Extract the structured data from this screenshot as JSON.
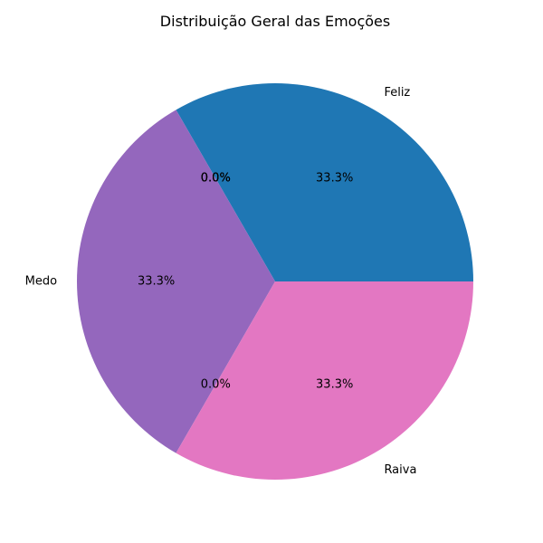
{
  "chart_data": {
    "type": "pie",
    "title": "Distribuição Geral das Emoções",
    "slices": [
      {
        "label": "Feliz",
        "value": 1,
        "pct_label": "33.3%",
        "color": "#1f77b4"
      },
      {
        "label": "",
        "value": 0,
        "pct_label": "0.0%",
        "color": "#ff7f0e"
      },
      {
        "label": "",
        "value": 0,
        "pct_label": "0.0%",
        "color": "#2ca02c"
      },
      {
        "label": "",
        "value": 0,
        "pct_label": "0.0%",
        "color": "#d62728"
      },
      {
        "label": "Medo",
        "value": 1,
        "pct_label": "33.3%",
        "color": "#9467bd"
      },
      {
        "label": "",
        "value": 0,
        "pct_label": "0.0%",
        "color": "#8c564b"
      },
      {
        "label": "Raiva",
        "value": 1,
        "pct_label": "33.3%",
        "color": "#e377c2"
      }
    ],
    "start_angle": 0,
    "direction": "counterclockwise",
    "legend": "none"
  }
}
